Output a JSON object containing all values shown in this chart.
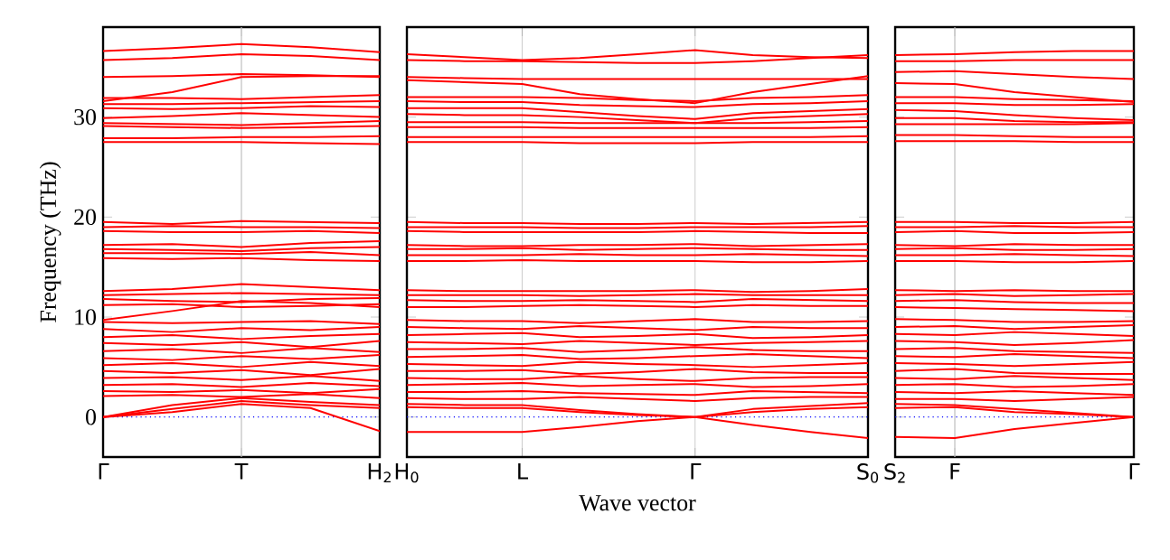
{
  "chart_data": [
    {
      "type": "line",
      "ylabel": "Frequency (THz)",
      "color": "#ff0000",
      "line_style": "solid",
      "tick_labels": true,
      "categories": [
        "Γ",
        null,
        "T",
        null,
        "H$_{2}$"
      ],
      "ylim": [
        -4,
        39
      ],
      "yticks": [
        0,
        10,
        20,
        30
      ],
      "ref_lines": [
        {
          "axis": "y",
          "value": 0,
          "color": "#0000ff",
          "line_style": "dotted"
        },
        {
          "axis": "x",
          "value": "T",
          "color": "#bfbfbf",
          "line_style": "solid"
        }
      ],
      "series": [
        {
          "values": [
            36.6,
            36.9,
            37.3,
            37.0,
            36.5
          ]
        },
        {
          "values": [
            35.7,
            35.9,
            36.3,
            36.1,
            35.7
          ]
        },
        {
          "values": [
            34.0,
            34.1,
            34.3,
            34.2,
            34.0
          ]
        },
        {
          "values": [
            31.6,
            32.5,
            34.0,
            34.1,
            34.1
          ]
        },
        {
          "values": [
            31.9,
            31.9,
            31.8,
            32.0,
            32.2
          ]
        },
        {
          "values": [
            31.3,
            31.3,
            31.4,
            31.5,
            31.6
          ]
        },
        {
          "values": [
            30.9,
            30.8,
            30.9,
            31.1,
            31.0
          ]
        },
        {
          "values": [
            29.9,
            30.1,
            30.4,
            30.2,
            30.0
          ]
        },
        {
          "values": [
            29.4,
            29.3,
            29.2,
            29.4,
            29.6
          ]
        },
        {
          "values": [
            29.1,
            29.0,
            28.9,
            29.0,
            29.1
          ]
        },
        {
          "values": [
            27.9,
            27.9,
            28.0,
            28.0,
            28.1
          ]
        },
        {
          "values": [
            27.5,
            27.5,
            27.5,
            27.4,
            27.3
          ]
        },
        {
          "values": [
            19.5,
            19.3,
            19.6,
            19.5,
            19.4
          ]
        },
        {
          "values": [
            19.0,
            19.1,
            19.0,
            19.0,
            18.9
          ]
        },
        {
          "values": [
            18.6,
            18.5,
            18.5,
            18.6,
            18.4
          ]
        },
        {
          "values": [
            17.2,
            17.3,
            17.0,
            17.4,
            17.6
          ]
        },
        {
          "values": [
            16.8,
            16.7,
            16.6,
            16.9,
            17.0
          ]
        },
        {
          "values": [
            16.4,
            16.4,
            16.3,
            16.5,
            16.2
          ]
        },
        {
          "values": [
            15.9,
            15.8,
            15.9,
            15.7,
            15.6
          ]
        },
        {
          "values": [
            12.6,
            12.8,
            13.3,
            13.0,
            12.7
          ]
        },
        {
          "values": [
            12.2,
            12.3,
            12.4,
            12.3,
            12.2
          ]
        },
        {
          "values": [
            11.8,
            11.6,
            11.5,
            11.8,
            11.9
          ]
        },
        {
          "values": [
            11.2,
            11.3,
            11.0,
            11.1,
            11.3
          ]
        },
        {
          "values": [
            9.7,
            10.6,
            11.6,
            11.4,
            11.0
          ]
        },
        {
          "values": [
            9.5,
            9.4,
            9.5,
            9.6,
            9.3
          ]
        },
        {
          "values": [
            8.8,
            8.5,
            8.9,
            8.7,
            9.0
          ]
        },
        {
          "values": [
            8.0,
            8.2,
            7.8,
            8.1,
            8.3
          ]
        },
        {
          "values": [
            7.4,
            7.2,
            7.5,
            7.0,
            7.6
          ]
        },
        {
          "values": [
            6.6,
            6.8,
            6.4,
            6.9,
            6.5
          ]
        },
        {
          "values": [
            5.9,
            5.7,
            6.1,
            5.8,
            6.2
          ]
        },
        {
          "values": [
            5.2,
            5.4,
            5.0,
            5.5,
            5.1
          ]
        },
        {
          "values": [
            4.6,
            4.4,
            4.7,
            4.2,
            4.8
          ]
        },
        {
          "values": [
            3.9,
            4.0,
            3.7,
            4.1,
            3.6
          ]
        },
        {
          "values": [
            3.2,
            3.3,
            3.0,
            3.4,
            3.1
          ]
        },
        {
          "values": [
            2.6,
            2.5,
            2.7,
            2.4,
            2.8
          ]
        },
        {
          "values": [
            2.1,
            2.2,
            2.0,
            2.3,
            1.9
          ]
        },
        {
          "values": [
            0,
            1.2,
            1.9,
            1.5,
            1.2
          ]
        },
        {
          "values": [
            0,
            0.8,
            1.6,
            1.2,
            0.9
          ]
        },
        {
          "values": [
            0,
            0.5,
            1.3,
            0.9,
            -1.4
          ]
        }
      ]
    },
    {
      "type": "line",
      "xlabel": "Wave vector",
      "color": "#ff0000",
      "line_style": "solid",
      "grid": "x",
      "tick_labels": "x",
      "categories": [
        "H$_{0}$",
        null,
        "L",
        null,
        null,
        "Γ",
        null,
        null,
        "S$_{0}$"
      ],
      "ylim": [
        -4,
        39
      ],
      "yticks": [
        0,
        10,
        20,
        30
      ],
      "ref_lines": [
        {
          "axis": "y",
          "value": 0,
          "color": "#0000ff",
          "line_style": "dotted"
        }
      ],
      "series": [
        {
          "values": [
            36.3,
            36.0,
            35.7,
            35.9,
            36.3,
            36.7,
            36.2,
            36.0,
            35.9
          ]
        },
        {
          "values": [
            35.7,
            35.6,
            35.6,
            35.5,
            35.4,
            35.4,
            35.6,
            35.9,
            36.2
          ]
        },
        {
          "values": [
            34.0,
            33.9,
            33.8,
            33.8,
            33.8,
            33.8,
            33.8,
            33.8,
            33.8
          ]
        },
        {
          "values": [
            33.7,
            33.5,
            33.3,
            32.3,
            31.8,
            31.4,
            32.5,
            33.3,
            34.1
          ]
        },
        {
          "values": [
            32.0,
            32.0,
            32.0,
            31.9,
            31.7,
            31.6,
            31.9,
            32.0,
            32.2
          ]
        },
        {
          "values": [
            31.6,
            31.5,
            31.5,
            31.2,
            31.1,
            31.0,
            31.3,
            31.4,
            31.6
          ]
        },
        {
          "values": [
            30.9,
            30.9,
            30.9,
            30.5,
            30.1,
            29.8,
            30.4,
            30.6,
            30.8
          ]
        },
        {
          "values": [
            30.3,
            30.2,
            30.2,
            30.0,
            29.7,
            29.4,
            29.9,
            30.1,
            30.3
          ]
        },
        {
          "values": [
            29.5,
            29.5,
            29.5,
            29.4,
            29.4,
            29.4,
            29.4,
            29.5,
            29.6
          ]
        },
        {
          "values": [
            29.0,
            29.0,
            29.0,
            28.9,
            28.9,
            28.9,
            28.9,
            28.9,
            29.0
          ]
        },
        {
          "values": [
            28.0,
            28.0,
            28.0,
            28.0,
            28.0,
            28.0,
            28.0,
            28.0,
            28.1
          ]
        },
        {
          "values": [
            27.5,
            27.5,
            27.5,
            27.4,
            27.4,
            27.4,
            27.5,
            27.5,
            27.5
          ]
        },
        {
          "values": [
            19.5,
            19.4,
            19.4,
            19.3,
            19.3,
            19.4,
            19.3,
            19.4,
            19.5
          ]
        },
        {
          "values": [
            19.0,
            19.0,
            19.0,
            18.9,
            18.9,
            19.0,
            19.0,
            19.0,
            19.1
          ]
        },
        {
          "values": [
            18.6,
            18.5,
            18.5,
            18.5,
            18.5,
            18.6,
            18.5,
            18.4,
            18.4
          ]
        },
        {
          "values": [
            17.2,
            17.1,
            17.1,
            17.2,
            17.2,
            17.3,
            17.1,
            17.2,
            17.3
          ]
        },
        {
          "values": [
            16.8,
            16.8,
            16.9,
            16.7,
            16.8,
            16.9,
            16.8,
            16.7,
            16.7
          ]
        },
        {
          "values": [
            16.2,
            16.2,
            16.2,
            16.3,
            16.2,
            16.2,
            16.3,
            16.2,
            16.1
          ]
        },
        {
          "values": [
            15.6,
            15.6,
            15.7,
            15.6,
            15.6,
            15.6,
            15.5,
            15.5,
            15.6
          ]
        },
        {
          "values": [
            12.7,
            12.6,
            12.6,
            12.6,
            12.6,
            12.7,
            12.5,
            12.6,
            12.8
          ]
        },
        {
          "values": [
            12.2,
            12.2,
            12.2,
            12.1,
            12.2,
            12.3,
            12.2,
            12.2,
            12.2
          ]
        },
        {
          "values": [
            11.7,
            11.6,
            11.6,
            11.7,
            11.6,
            11.5,
            11.8,
            11.7,
            11.6
          ]
        },
        {
          "values": [
            11.0,
            11.0,
            11.1,
            11.2,
            11.1,
            11.0,
            11.2,
            11.1,
            11.1
          ]
        },
        {
          "values": [
            9.7,
            9.6,
            9.6,
            9.4,
            9.6,
            9.8,
            9.5,
            9.5,
            9.6
          ]
        },
        {
          "values": [
            9.0,
            8.9,
            8.8,
            9.1,
            8.9,
            8.7,
            9.0,
            8.9,
            8.9
          ]
        },
        {
          "values": [
            8.2,
            8.3,
            8.4,
            8.0,
            8.1,
            8.3,
            7.9,
            8.0,
            8.2
          ]
        },
        {
          "values": [
            7.5,
            7.4,
            7.3,
            7.6,
            7.4,
            7.2,
            7.4,
            7.5,
            7.6
          ]
        },
        {
          "values": [
            6.8,
            6.8,
            6.9,
            6.5,
            6.7,
            7.0,
            6.7,
            6.6,
            6.6
          ]
        },
        {
          "values": [
            6.0,
            6.1,
            6.2,
            5.8,
            5.9,
            6.1,
            6.3,
            6.1,
            5.9
          ]
        },
        {
          "values": [
            5.3,
            5.2,
            5.1,
            5.5,
            5.3,
            5.2,
            5.0,
            5.2,
            5.4
          ]
        },
        {
          "values": [
            4.6,
            4.6,
            4.7,
            4.3,
            4.5,
            4.8,
            4.5,
            4.4,
            4.4
          ]
        },
        {
          "values": [
            3.9,
            3.8,
            3.8,
            4.1,
            3.8,
            3.6,
            3.9,
            4.0,
            4.0
          ]
        },
        {
          "values": [
            3.2,
            3.3,
            3.4,
            3.1,
            3.2,
            3.3,
            3.0,
            3.1,
            3.3
          ]
        },
        {
          "values": [
            2.5,
            2.5,
            2.6,
            2.4,
            2.3,
            2.2,
            2.6,
            2.5,
            2.4
          ]
        },
        {
          "values": [
            1.9,
            1.8,
            1.8,
            2.0,
            1.8,
            1.6,
            1.9,
            2.0,
            2.0
          ]
        },
        {
          "values": [
            1.3,
            1.2,
            1.2,
            0.7,
            0.3,
            0,
            0.8,
            1.1,
            1.4
          ]
        },
        {
          "values": [
            1.0,
            0.9,
            0.9,
            0.5,
            0.2,
            0,
            0.5,
            0.8,
            1.0
          ]
        },
        {
          "values": [
            -1.5,
            -1.5,
            -1.5,
            -1.0,
            -0.4,
            0,
            -0.8,
            -1.5,
            -2.1
          ]
        }
      ]
    },
    {
      "type": "line",
      "color": "#ff0000",
      "line_style": "solid",
      "tick_labels": "x",
      "categories": [
        "S$_{2}$",
        "F",
        null,
        null,
        "Γ"
      ],
      "ylim": [
        -4,
        39
      ],
      "yticks": [
        0,
        10,
        20,
        30
      ],
      "ref_lines": [
        {
          "axis": "y",
          "value": 0,
          "color": "#0000ff",
          "line_style": "dotted"
        },
        {
          "axis": "x",
          "value": "F",
          "color": "#bfbfbf",
          "line_style": "solid"
        }
      ],
      "series": [
        {
          "values": [
            36.2,
            36.3,
            36.5,
            36.6,
            36.6
          ]
        },
        {
          "values": [
            35.6,
            35.6,
            35.7,
            35.7,
            35.7
          ]
        },
        {
          "values": [
            34.5,
            34.6,
            34.3,
            34.0,
            33.8
          ]
        },
        {
          "values": [
            33.4,
            33.3,
            32.5,
            32.0,
            31.5
          ]
        },
        {
          "values": [
            32.0,
            32.0,
            31.8,
            31.7,
            31.6
          ]
        },
        {
          "values": [
            31.4,
            31.4,
            31.2,
            31.2,
            31.3
          ]
        },
        {
          "values": [
            30.7,
            30.6,
            30.2,
            29.9,
            29.7
          ]
        },
        {
          "values": [
            29.9,
            29.9,
            29.6,
            29.5,
            29.5
          ]
        },
        {
          "values": [
            29.3,
            29.3,
            29.3,
            29.3,
            29.4
          ]
        },
        {
          "values": [
            28.2,
            28.2,
            28.1,
            28.0,
            28.0
          ]
        },
        {
          "values": [
            27.6,
            27.6,
            27.6,
            27.5,
            27.5
          ]
        },
        {
          "values": [
            19.5,
            19.5,
            19.4,
            19.4,
            19.5
          ]
        },
        {
          "values": [
            19.0,
            19.0,
            19.1,
            19.0,
            19.0
          ]
        },
        {
          "values": [
            18.5,
            18.6,
            18.4,
            18.4,
            18.5
          ]
        },
        {
          "values": [
            17.2,
            17.1,
            17.3,
            17.2,
            17.2
          ]
        },
        {
          "values": [
            16.8,
            16.9,
            16.7,
            16.7,
            16.8
          ]
        },
        {
          "values": [
            16.2,
            16.2,
            16.3,
            16.2,
            16.1
          ]
        },
        {
          "values": [
            15.6,
            15.6,
            15.5,
            15.5,
            15.6
          ]
        },
        {
          "values": [
            12.7,
            12.6,
            12.7,
            12.6,
            12.6
          ]
        },
        {
          "values": [
            12.2,
            12.3,
            12.1,
            12.2,
            12.3
          ]
        },
        {
          "values": [
            11.6,
            11.7,
            11.5,
            11.4,
            11.4
          ]
        },
        {
          "values": [
            11.0,
            10.9,
            10.8,
            10.7,
            10.6
          ]
        },
        {
          "values": [
            9.8,
            9.7,
            9.5,
            9.5,
            9.6
          ]
        },
        {
          "values": [
            9.0,
            9.1,
            8.8,
            9.0,
            9.2
          ]
        },
        {
          "values": [
            8.3,
            8.2,
            8.5,
            8.3,
            8.1
          ]
        },
        {
          "values": [
            7.6,
            7.5,
            7.2,
            7.4,
            7.7
          ]
        },
        {
          "values": [
            6.8,
            6.9,
            6.6,
            6.5,
            6.4
          ]
        },
        {
          "values": [
            6.1,
            6.0,
            6.3,
            6.1,
            5.9
          ]
        },
        {
          "values": [
            5.4,
            5.3,
            5.1,
            5.3,
            5.5
          ]
        },
        {
          "values": [
            4.6,
            4.8,
            4.4,
            4.3,
            4.3
          ]
        },
        {
          "values": [
            3.9,
            3.8,
            4.1,
            3.9,
            3.7
          ]
        },
        {
          "values": [
            3.2,
            3.3,
            3.0,
            3.1,
            3.3
          ]
        },
        {
          "values": [
            2.5,
            2.4,
            2.6,
            2.4,
            2.2
          ]
        },
        {
          "values": [
            1.8,
            1.8,
            1.6,
            1.8,
            2.0
          ]
        },
        {
          "values": [
            1.3,
            1.2,
            0.8,
            0.4,
            0
          ]
        },
        {
          "values": [
            -2.0,
            -2.1,
            -1.2,
            -0.6,
            0
          ]
        },
        {
          "values": [
            0.9,
            1.0,
            0.5,
            0.3,
            0
          ]
        }
      ]
    }
  ]
}
